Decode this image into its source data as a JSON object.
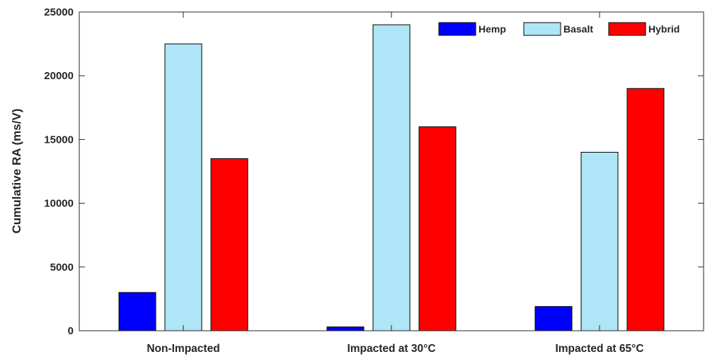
{
  "chart_data": {
    "type": "bar",
    "title": "",
    "xlabel": "",
    "ylabel": "Cumulative RA (ms/V)",
    "categories": [
      "Non-Impacted",
      "Impacted at 30°C",
      "Impacted at 65°C"
    ],
    "series": [
      {
        "name": "Hemp",
        "color": "#0000ff",
        "values": [
          3000,
          300,
          1900
        ]
      },
      {
        "name": "Basalt",
        "color": "#aee6f7",
        "values": [
          22500,
          24000,
          14000
        ]
      },
      {
        "name": "Hybrid",
        "color": "#ff0000",
        "values": [
          13500,
          16000,
          19000
        ]
      }
    ],
    "ylim": [
      0,
      25000
    ],
    "yticks": [
      "0",
      "5000",
      "10000",
      "15000",
      "20000",
      "25000"
    ],
    "grid": false,
    "legend": "top-right"
  }
}
